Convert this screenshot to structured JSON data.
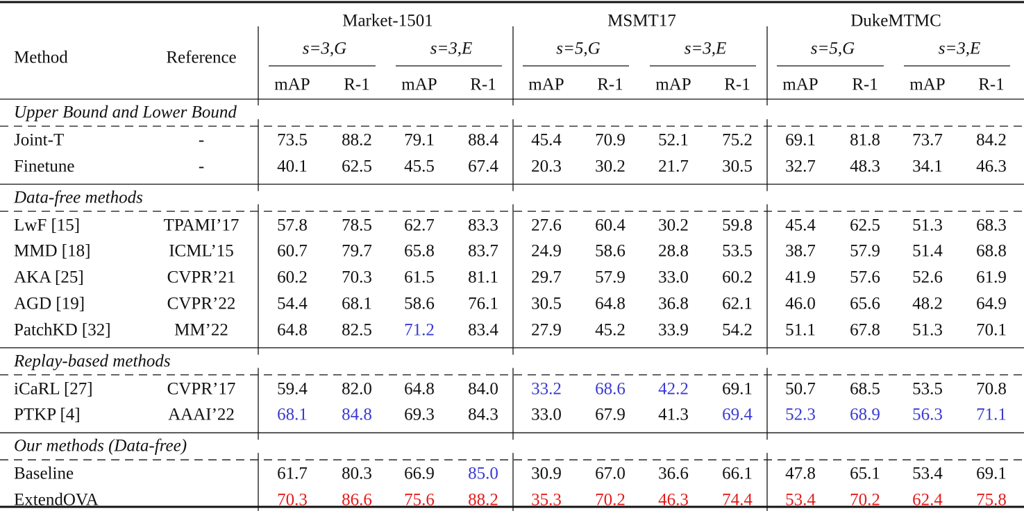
{
  "table": {
    "header": {
      "method": "Method",
      "reference": "Reference",
      "datasets": [
        {
          "name": "Market-1501",
          "settings": [
            {
              "name": "s=3,G",
              "metrics": [
                "mAP",
                "R-1"
              ]
            },
            {
              "name": "s=3,E",
              "metrics": [
                "mAP",
                "R-1"
              ]
            }
          ]
        },
        {
          "name": "MSMT17",
          "settings": [
            {
              "name": "s=5,G",
              "metrics": [
                "mAP",
                "R-1"
              ]
            },
            {
              "name": "s=3,E",
              "metrics": [
                "mAP",
                "R-1"
              ]
            }
          ]
        },
        {
          "name": "DukeMTMC",
          "settings": [
            {
              "name": "s=5,G",
              "metrics": [
                "mAP",
                "R-1"
              ]
            },
            {
              "name": "s=3,E",
              "metrics": [
                "mAP",
                "R-1"
              ]
            }
          ]
        }
      ]
    },
    "sections": [
      {
        "title": "Upper Bound and Lower Bound",
        "rows": [
          {
            "method": "Joint-T",
            "reference": "-",
            "values": [
              "73.5",
              "88.2",
              "79.1",
              "88.4",
              "45.4",
              "70.9",
              "52.1",
              "75.2",
              "69.1",
              "81.8",
              "73.7",
              "84.2"
            ],
            "colors": [
              null,
              null,
              null,
              null,
              null,
              null,
              null,
              null,
              null,
              null,
              null,
              null
            ]
          },
          {
            "method": "Finetune",
            "reference": "-",
            "values": [
              "40.1",
              "62.5",
              "45.5",
              "67.4",
              "20.3",
              "30.2",
              "21.7",
              "30.5",
              "32.7",
              "48.3",
              "34.1",
              "46.3"
            ],
            "colors": [
              null,
              null,
              null,
              null,
              null,
              null,
              null,
              null,
              null,
              null,
              null,
              null
            ]
          }
        ]
      },
      {
        "title": "Data-free methods",
        "rows": [
          {
            "method": "LwF [15]",
            "reference": "TPAMI’17",
            "values": [
              "57.8",
              "78.5",
              "62.7",
              "83.3",
              "27.6",
              "60.4",
              "30.2",
              "59.8",
              "45.4",
              "62.5",
              "51.3",
              "68.3"
            ],
            "colors": [
              null,
              null,
              null,
              null,
              null,
              null,
              null,
              null,
              null,
              null,
              null,
              null
            ]
          },
          {
            "method": "MMD [18]",
            "reference": "ICML’15",
            "values": [
              "60.7",
              "79.7",
              "65.8",
              "83.7",
              "24.9",
              "58.6",
              "28.8",
              "53.5",
              "38.7",
              "57.9",
              "51.4",
              "68.8"
            ],
            "colors": [
              null,
              null,
              null,
              null,
              null,
              null,
              null,
              null,
              null,
              null,
              null,
              null
            ]
          },
          {
            "method": "AKA [25]",
            "reference": "CVPR’21",
            "values": [
              "60.2",
              "70.3",
              "61.5",
              "81.1",
              "29.7",
              "57.9",
              "33.0",
              "60.2",
              "41.9",
              "57.6",
              "52.6",
              "61.9"
            ],
            "colors": [
              null,
              null,
              null,
              null,
              null,
              null,
              null,
              null,
              null,
              null,
              null,
              null
            ]
          },
          {
            "method": "AGD [19]",
            "reference": "CVPR’22",
            "values": [
              "54.4",
              "68.1",
              "58.6",
              "76.1",
              "30.5",
              "64.8",
              "36.8",
              "62.1",
              "46.0",
              "65.6",
              "48.2",
              "64.9"
            ],
            "colors": [
              null,
              null,
              null,
              null,
              null,
              null,
              null,
              null,
              null,
              null,
              null,
              null
            ]
          },
          {
            "method": "PatchKD [32]",
            "reference": "MM’22",
            "values": [
              "64.8",
              "82.5",
              "71.2",
              "83.4",
              "27.9",
              "45.2",
              "33.9",
              "54.2",
              "51.1",
              "67.8",
              "51.3",
              "70.1"
            ],
            "colors": [
              null,
              null,
              "#3a3ad4",
              null,
              null,
              null,
              null,
              null,
              null,
              null,
              null,
              null
            ]
          }
        ]
      },
      {
        "title": "Replay-based methods",
        "rows": [
          {
            "method": "iCaRL [27]",
            "reference": "CVPR’17",
            "values": [
              "59.4",
              "82.0",
              "64.8",
              "84.0",
              "33.2",
              "68.6",
              "42.2",
              "69.1",
              "50.7",
              "68.5",
              "53.5",
              "70.8"
            ],
            "colors": [
              null,
              null,
              null,
              null,
              "#3a3ad4",
              "#3a3ad4",
              "#3a3ad4",
              null,
              null,
              null,
              null,
              null
            ]
          },
          {
            "method": "PTKP [4]",
            "reference": "AAAI’22",
            "values": [
              "68.1",
              "84.8",
              "69.3",
              "84.3",
              "33.0",
              "67.9",
              "41.3",
              "69.4",
              "52.3",
              "68.9",
              "56.3",
              "71.1"
            ],
            "colors": [
              "#3a3ad4",
              "#3a3ad4",
              null,
              null,
              null,
              null,
              null,
              "#3a3ad4",
              "#3a3ad4",
              "#3a3ad4",
              "#3a3ad4",
              "#3a3ad4"
            ]
          }
        ]
      },
      {
        "title": "Our methods (Data-free)",
        "rows": [
          {
            "method": "Baseline",
            "values": [
              "61.7",
              "80.3",
              "66.9",
              "85.0",
              "30.9",
              "67.0",
              "36.6",
              "66.1",
              "47.8",
              "65.1",
              "53.4",
              "69.1"
            ],
            "colors": [
              null,
              null,
              null,
              "#3a3ad4",
              null,
              null,
              null,
              null,
              null,
              null,
              null,
              null
            ]
          },
          {
            "method": "ExtendOVA",
            "values": [
              "70.3",
              "86.6",
              "75.6",
              "88.2",
              "35.3",
              "70.2",
              "46.3",
              "74.4",
              "53.4",
              "70.2",
              "62.4",
              "75.8"
            ],
            "colors": [
              "#e31b1b",
              "#e31b1b",
              "#e31b1b",
              "#e31b1b",
              "#e31b1b",
              "#e31b1b",
              "#e31b1b",
              "#e31b1b",
              "#e31b1b",
              "#e31b1b",
              "#e31b1b",
              "#e31b1b"
            ]
          }
        ]
      }
    ]
  }
}
